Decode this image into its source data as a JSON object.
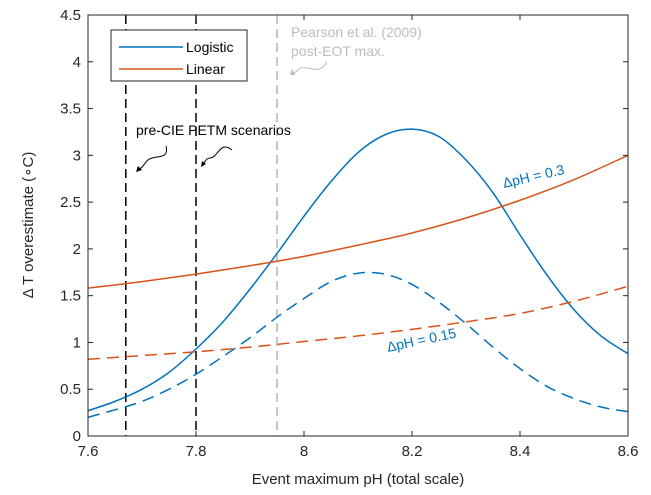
{
  "chart_data": {
    "type": "line",
    "xlabel": "Event maximum pH (total scale)",
    "ylabel": "Δ T overestimate (∘C)",
    "xlim": [
      7.6,
      8.6
    ],
    "ylim": [
      0,
      4.5
    ],
    "xticks": [
      "7.6",
      "7.8",
      "8",
      "8.2",
      "8.4",
      "8.6"
    ],
    "yticks": [
      "0",
      "0.5",
      "1",
      "1.5",
      "2",
      "2.5",
      "3",
      "3.5",
      "4",
      "4.5"
    ],
    "grid": false,
    "legend_position": "top-left",
    "colors": {
      "logistic": "#0072BD",
      "linear": "#D95319",
      "pre_cie": "#000000",
      "pearson": "#b4b4b4"
    },
    "legend": [
      "Logistic",
      "Linear"
    ],
    "series": [
      {
        "name": "Logistic",
        "group": "logistic",
        "style": "solid",
        "x": [
          7.6,
          7.65,
          7.7,
          7.75,
          7.8,
          7.85,
          7.9,
          7.95,
          8.0,
          8.05,
          8.1,
          8.15,
          8.2,
          8.25,
          8.3,
          8.35,
          8.4,
          8.45,
          8.5,
          8.55,
          8.6
        ],
        "y": [
          0.27,
          0.37,
          0.5,
          0.68,
          0.93,
          1.22,
          1.57,
          1.95,
          2.35,
          2.72,
          3.03,
          3.22,
          3.28,
          3.2,
          2.95,
          2.6,
          2.15,
          1.72,
          1.35,
          1.07,
          0.88
        ]
      },
      {
        "name": "Linear",
        "group": "linear",
        "style": "solid",
        "x": [
          7.6,
          7.7,
          7.8,
          7.9,
          8.0,
          8.1,
          8.2,
          8.3,
          8.4,
          8.5,
          8.6
        ],
        "y": [
          1.58,
          1.65,
          1.73,
          1.82,
          1.92,
          2.04,
          2.17,
          2.33,
          2.52,
          2.74,
          3.0
        ]
      },
      {
        "name": "Logistic",
        "group": "logistic",
        "style": "dashed",
        "x": [
          7.6,
          7.65,
          7.7,
          7.75,
          7.8,
          7.85,
          7.9,
          7.95,
          8.0,
          8.05,
          8.1,
          8.15,
          8.2,
          8.25,
          8.3,
          8.35,
          8.4,
          8.45,
          8.5,
          8.55,
          8.6
        ],
        "y": [
          0.2,
          0.28,
          0.37,
          0.5,
          0.66,
          0.85,
          1.05,
          1.27,
          1.47,
          1.65,
          1.74,
          1.73,
          1.62,
          1.43,
          1.2,
          0.95,
          0.72,
          0.53,
          0.4,
          0.31,
          0.26
        ]
      },
      {
        "name": "Linear",
        "group": "linear",
        "style": "dashed",
        "x": [
          7.6,
          7.7,
          7.8,
          7.9,
          8.0,
          8.1,
          8.2,
          8.3,
          8.4,
          8.5,
          8.6
        ],
        "y": [
          0.82,
          0.86,
          0.9,
          0.95,
          1.01,
          1.07,
          1.14,
          1.22,
          1.31,
          1.44,
          1.6
        ]
      }
    ],
    "vlines": [
      {
        "x": 7.67,
        "group": "pre_cie"
      },
      {
        "x": 7.8,
        "group": "pre_cie"
      },
      {
        "x": 7.95,
        "group": "pearson"
      }
    ],
    "annotations": {
      "pearson_line1": "Pearson et al. (2009)",
      "pearson_line2": "post-EOT max.",
      "pre_cie": "pre-CIE PETM scenarios",
      "dph_03": "ΔpH = 0.3",
      "dph_015": "ΔpH = 0.15"
    }
  }
}
